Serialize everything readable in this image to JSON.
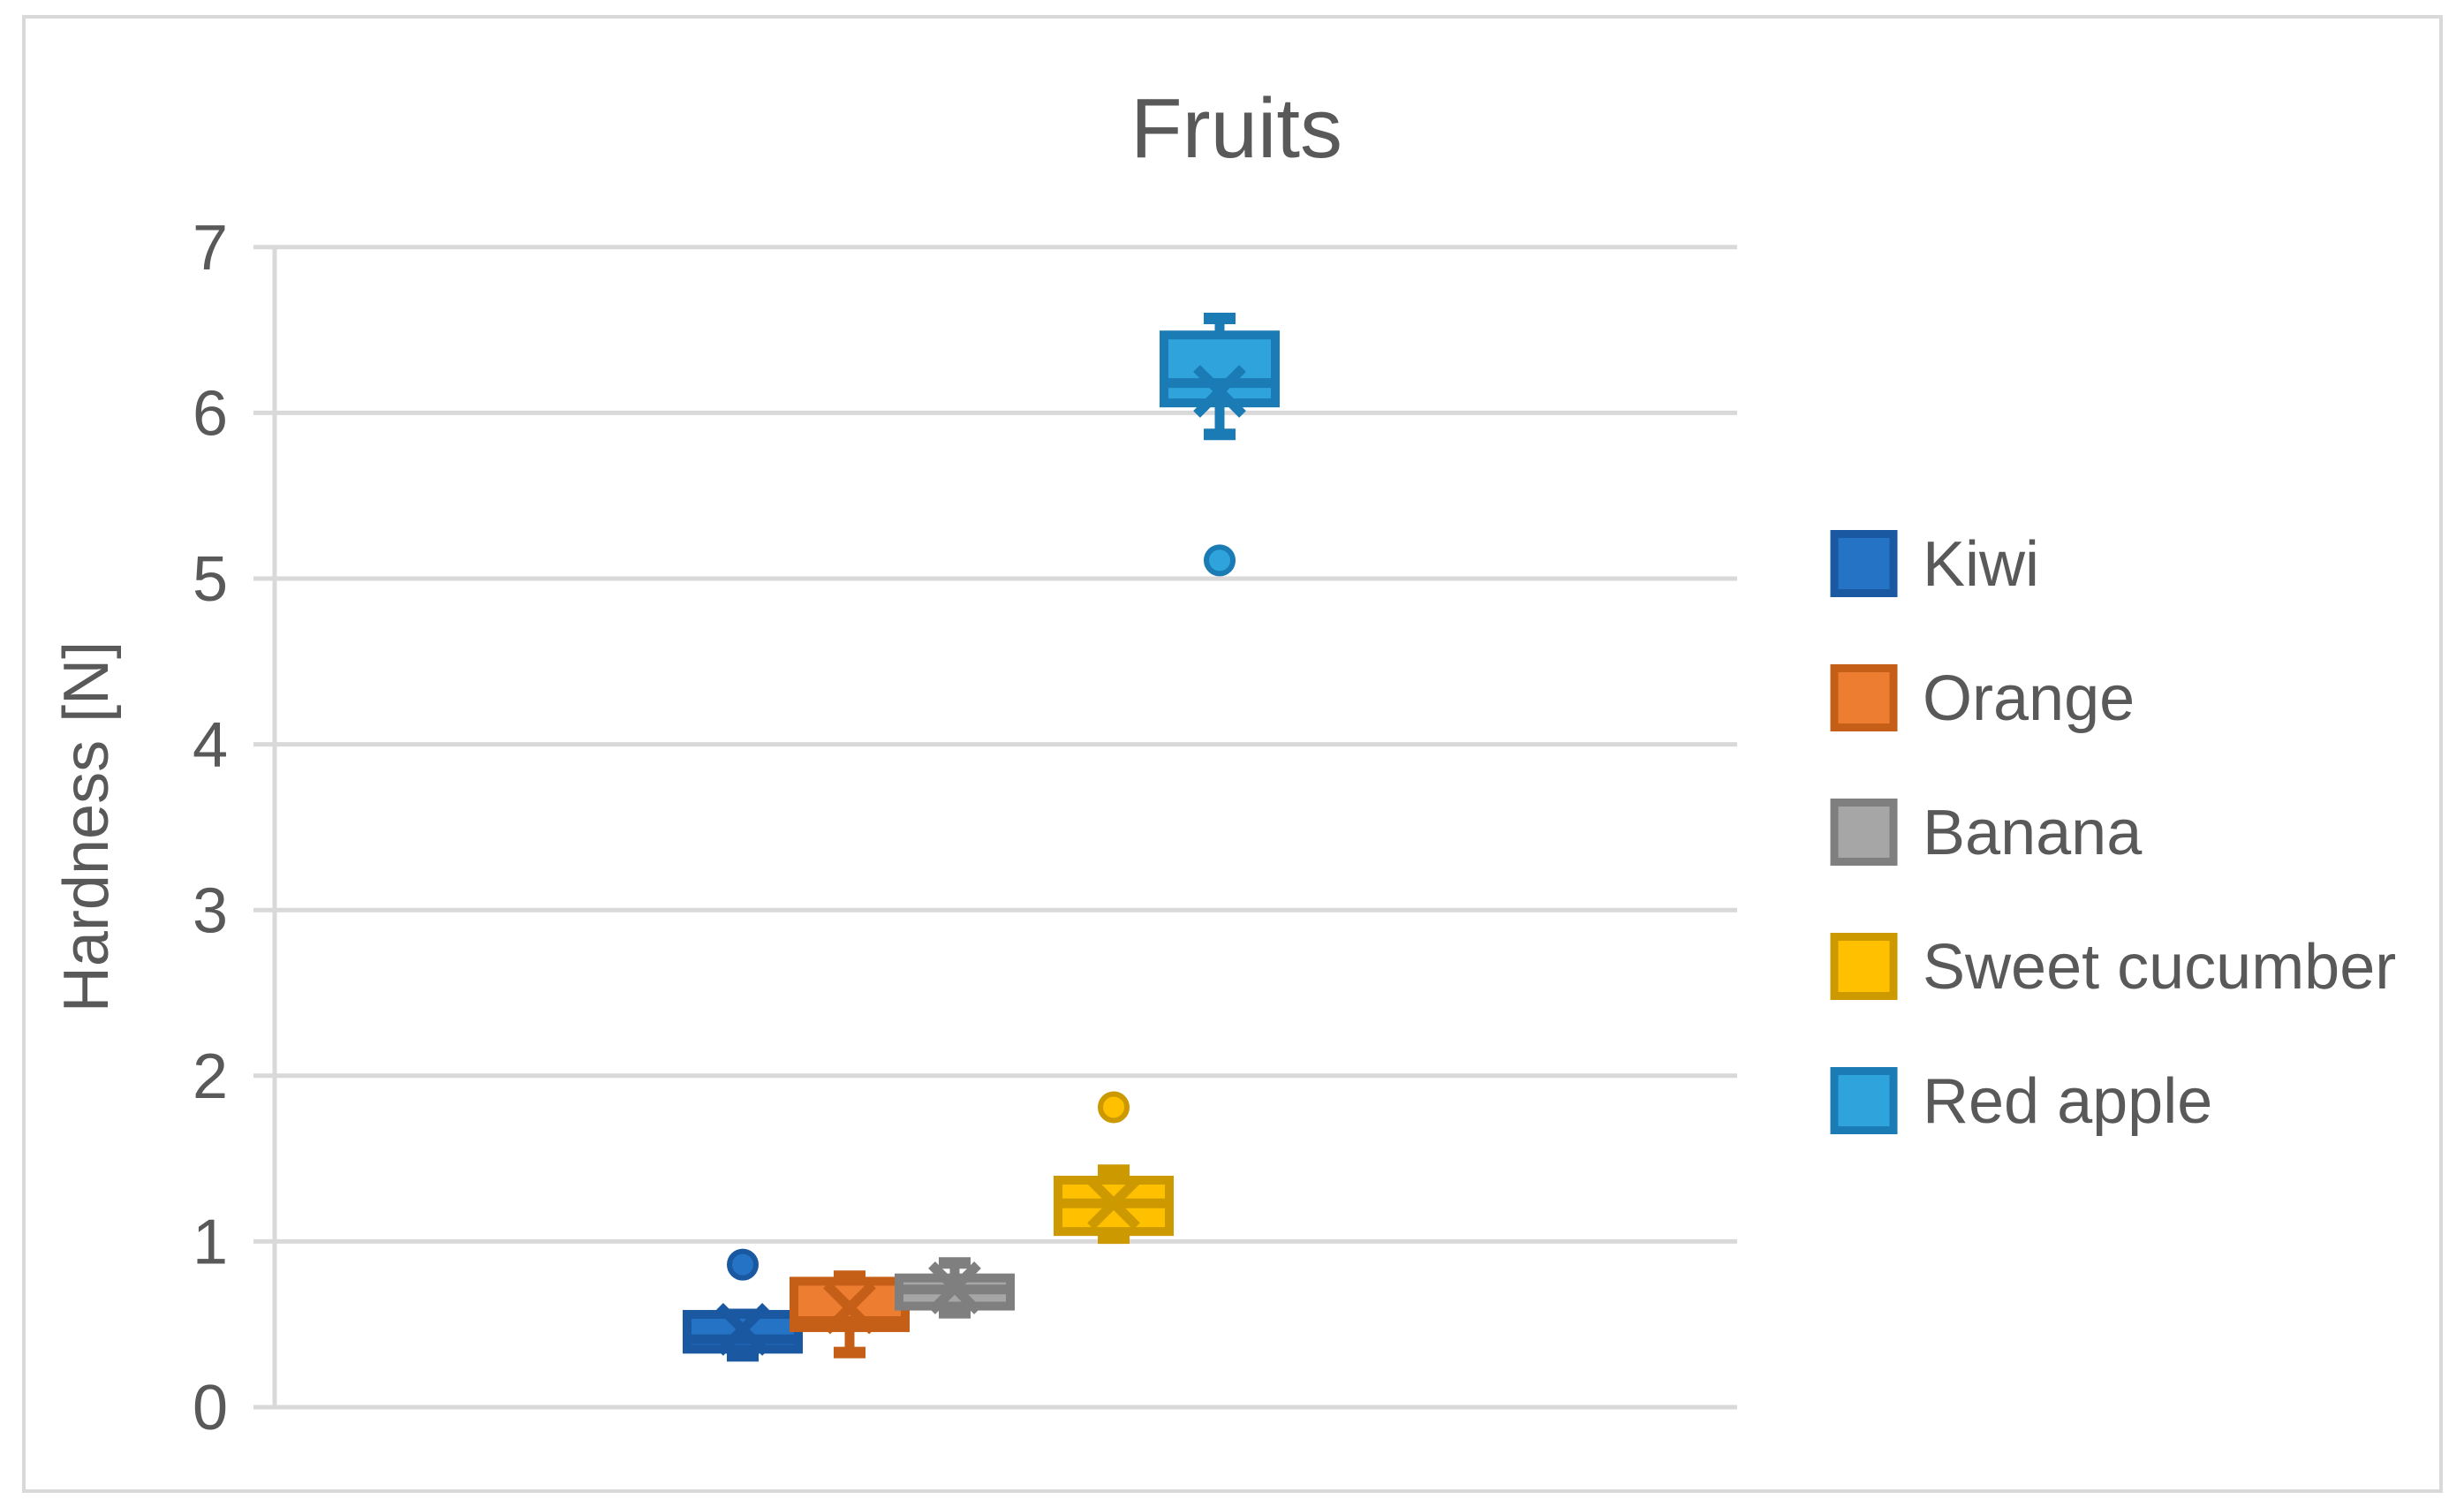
{
  "chart_title": "Fruits",
  "y_axis_title": "Hardness [N]",
  "colors": {
    "text": "#595959",
    "gridline": "#D9D9D9",
    "frame_border": "#D9D9D9",
    "background": "#FFFFFF"
  },
  "chart_data": {
    "type": "boxplot",
    "title": "Fruits",
    "ylabel": "Hardness [N]",
    "xlabel": "",
    "ylim": [
      0,
      7
    ],
    "yticks": [
      0,
      1,
      2,
      3,
      4,
      5,
      6,
      7
    ],
    "grid": true,
    "legend_position": "right",
    "series": [
      {
        "name": "Kiwi",
        "fill": "#2473C5",
        "line": "#1A58A2",
        "min": 0.31,
        "q1": 0.35,
        "median": 0.41,
        "q3": 0.56,
        "max": 0.56,
        "mean": 0.47,
        "outliers": [
          0.86
        ]
      },
      {
        "name": "Orange",
        "fill": "#ED7D31",
        "line": "#C55F17",
        "min": 0.33,
        "q1": 0.48,
        "median": 0.52,
        "q3": 0.76,
        "max": 0.79,
        "mean": 0.6,
        "outliers": []
      },
      {
        "name": "Banana",
        "fill": "#A6A6A6",
        "line": "#7F7F7F",
        "min": 0.57,
        "q1": 0.61,
        "median": 0.71,
        "q3": 0.78,
        "max": 0.87,
        "mean": 0.72,
        "outliers": []
      },
      {
        "name": "Sweet cucumber",
        "fill": "#FFC000",
        "line": "#CC9900",
        "min": 1.02,
        "q1": 1.06,
        "median": 1.23,
        "q3": 1.37,
        "max": 1.43,
        "mean": 1.23,
        "outliers": [
          1.81
        ]
      },
      {
        "name": "Red apple",
        "fill": "#2EA3DC",
        "line": "#1B7BB4",
        "min": 5.87,
        "q1": 6.06,
        "median": 6.18,
        "q3": 6.47,
        "max": 6.57,
        "mean": 6.13,
        "outliers": [
          5.11
        ]
      }
    ]
  }
}
